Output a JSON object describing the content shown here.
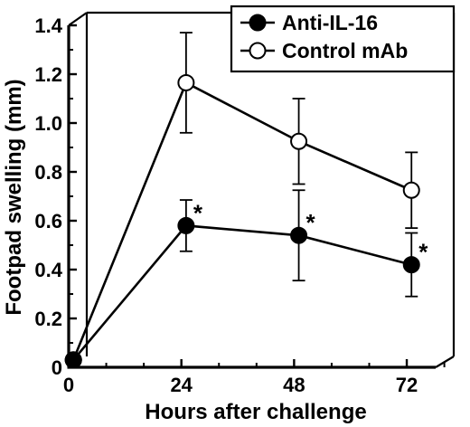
{
  "chart_data": {
    "type": "line",
    "xlabel": "Hours after challenge",
    "ylabel": "Footpad swelling (mm)",
    "x_ticks": [
      "0",
      "24",
      "48",
      "72"
    ],
    "y_ticks": [
      "0",
      "0.2",
      "0.4",
      "0.6",
      "0.8",
      "1.0",
      "1.2",
      "1.4"
    ],
    "xlim": [
      0,
      82
    ],
    "ylim": [
      0,
      1.4
    ],
    "grid": false,
    "legend_position": "top-right",
    "series": [
      {
        "name": "Anti-IL-16",
        "marker": "filled-circle",
        "color": "#000000",
        "x": [
          1,
          25,
          49,
          73
        ],
        "y": [
          0.03,
          0.58,
          0.54,
          0.42
        ],
        "error": [
          0,
          0.105,
          0.185,
          0.13
        ],
        "annotations": [
          "",
          "*",
          "*",
          "*"
        ]
      },
      {
        "name": "Control mAb",
        "marker": "open-circle",
        "color": "#000000",
        "x": [
          1,
          25,
          49,
          73
        ],
        "y": [
          0.03,
          1.165,
          0.925,
          0.725
        ],
        "error": [
          0,
          0.205,
          0.175,
          0.155
        ],
        "annotations": [
          "",
          "",
          "",
          ""
        ]
      }
    ]
  }
}
